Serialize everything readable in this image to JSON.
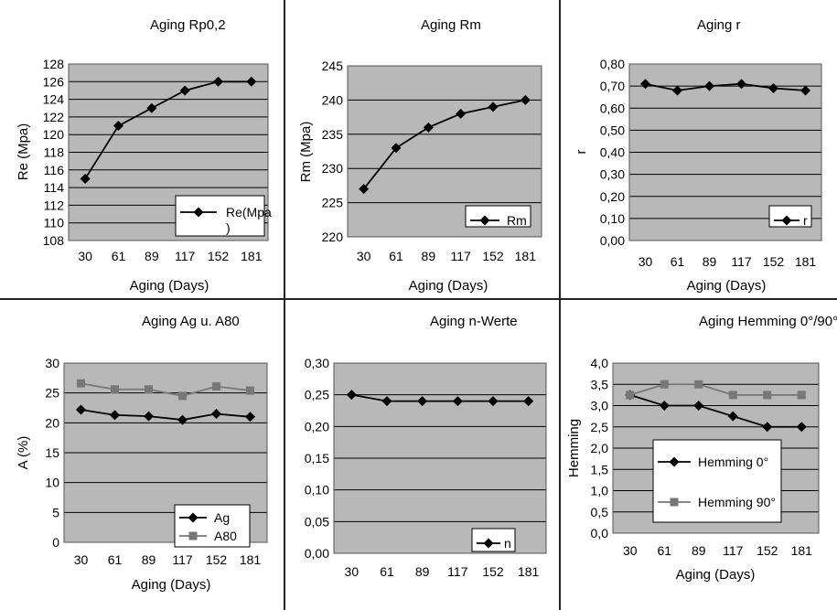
{
  "chart_data": [
    {
      "type": "line",
      "title": "Aging Rp0,2",
      "xlabel": "Aging (Days)",
      "ylabel": "Re (Mpa)",
      "categories": [
        "30",
        "61",
        "89",
        "117",
        "152",
        "181"
      ],
      "ylim": [
        108,
        128
      ],
      "yticks": [
        "108",
        "110",
        "112",
        "114",
        "116",
        "118",
        "120",
        "122",
        "124",
        "126",
        "128"
      ],
      "grid": true,
      "legend_position": "bottom-right",
      "series": [
        {
          "name": "Re(Mpa\n)",
          "marker": "diamond",
          "color": "#000000",
          "values": [
            115,
            121,
            123,
            125,
            126,
            126
          ]
        }
      ]
    },
    {
      "type": "line",
      "title": "Aging Rm",
      "xlabel": "Aging (Days)",
      "ylabel": "Rm (Mpa)",
      "categories": [
        "30",
        "61",
        "89",
        "117",
        "152",
        "181"
      ],
      "ylim": [
        220,
        245
      ],
      "yticks": [
        "220",
        "225",
        "230",
        "235",
        "240",
        "245"
      ],
      "grid": true,
      "legend_position": "bottom-right",
      "series": [
        {
          "name": "Rm",
          "marker": "diamond",
          "color": "#000000",
          "values": [
            227,
            233,
            236,
            238,
            239,
            240
          ]
        }
      ]
    },
    {
      "type": "line",
      "title": "Aging r",
      "xlabel": "Aging (Days)",
      "ylabel": "r",
      "categories": [
        "30",
        "61",
        "89",
        "117",
        "152",
        "181"
      ],
      "ylim": [
        0,
        0.8
      ],
      "yticks": [
        "0,00",
        "0,10",
        "0,20",
        "0,30",
        "0,40",
        "0,50",
        "0,60",
        "0,70",
        "0,80"
      ],
      "grid": true,
      "legend_position": "bottom-right",
      "series": [
        {
          "name": "r",
          "marker": "diamond",
          "color": "#000000",
          "values": [
            0.71,
            0.68,
            0.7,
            0.71,
            0.69,
            0.68
          ]
        }
      ]
    },
    {
      "type": "line",
      "title": "Aging Ag u. A80",
      "xlabel": "Aging (Days)",
      "ylabel": "A (%)",
      "categories": [
        "30",
        "61",
        "89",
        "117",
        "152",
        "181"
      ],
      "ylim": [
        0,
        30
      ],
      "yticks": [
        "0",
        "5",
        "10",
        "15",
        "20",
        "25",
        "30"
      ],
      "grid": true,
      "legend_position": "bottom-right",
      "series": [
        {
          "name": "Ag",
          "marker": "diamond",
          "color": "#000000",
          "values": [
            22.2,
            21.3,
            21.1,
            20.5,
            21.5,
            21.0
          ]
        },
        {
          "name": "A80",
          "marker": "square",
          "color": "#777777",
          "values": [
            26.6,
            25.6,
            25.6,
            24.5,
            26.1,
            25.4
          ]
        }
      ]
    },
    {
      "type": "line",
      "title": "Aging n-Werte",
      "xlabel": "",
      "ylabel": "",
      "categories": [
        "30",
        "61",
        "89",
        "117",
        "152",
        "181"
      ],
      "ylim": [
        0,
        0.3
      ],
      "yticks": [
        "0,00",
        "0,05",
        "0,10",
        "0,15",
        "0,20",
        "0,25",
        "0,30"
      ],
      "grid": true,
      "legend_position": "bottom-right",
      "series": [
        {
          "name": "n",
          "marker": "diamond",
          "color": "#000000",
          "values": [
            0.25,
            0.24,
            0.24,
            0.24,
            0.24,
            0.24
          ]
        }
      ]
    },
    {
      "type": "line",
      "title": "Aging Hemming 0°/90°",
      "xlabel": "Aging (Days)",
      "ylabel": "Hemming",
      "categories": [
        "30",
        "61",
        "89",
        "117",
        "152",
        "181"
      ],
      "ylim": [
        0,
        4
      ],
      "yticks": [
        "0,0",
        "0,5",
        "1,0",
        "1,5",
        "2,0",
        "2,5",
        "3,0",
        "3,5",
        "4,0"
      ],
      "grid": true,
      "legend_position": "left-middle",
      "series": [
        {
          "name": "Hemming 0°",
          "marker": "diamond",
          "color": "#000000",
          "values": [
            3.25,
            3.0,
            3.0,
            2.75,
            2.5,
            2.5
          ]
        },
        {
          "name": "Hemming 90°",
          "marker": "square",
          "color": "#777777",
          "values": [
            3.25,
            3.5,
            3.5,
            3.25,
            3.25,
            3.25
          ]
        }
      ]
    }
  ]
}
